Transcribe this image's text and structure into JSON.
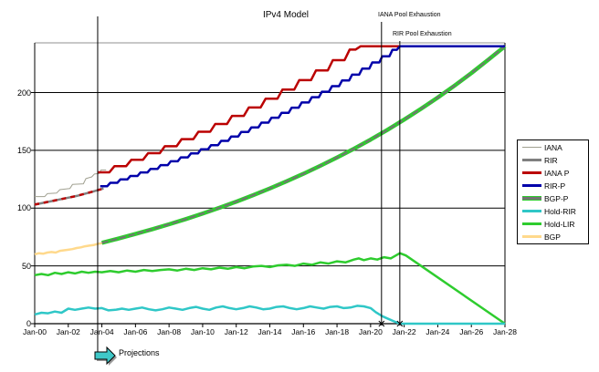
{
  "title": "IPv4 Model",
  "annotations": {
    "iana_exhaustion": {
      "label": "IANA Pool Exhaustion",
      "x_year": 20.65
    },
    "rir_exhaustion": {
      "label": "RIR Pool Exhaustion",
      "x_year": 21.74
    },
    "projections": {
      "label": "Projections",
      "x_year": 3.75,
      "arrow_color": "#3fc8c8"
    }
  },
  "legend": {
    "items": [
      {
        "label": "IANA",
        "color": "#a0a090",
        "thin": true
      },
      {
        "label": "RIR",
        "color": "#808080"
      },
      {
        "label": "IANA P",
        "color": "#bb0000"
      },
      {
        "label": "RIR-P",
        "color": "#0000aa"
      },
      {
        "label": "BGP-P",
        "color": "#737373",
        "edge": "#2ecc2e"
      },
      {
        "label": "Hold-RIR",
        "color": "#2fc7c7"
      },
      {
        "label": "Hold-LIR",
        "color": "#2ecc2e"
      },
      {
        "label": "BGP",
        "color": "#ffd98c"
      }
    ]
  },
  "chart_data": {
    "type": "line",
    "title": "IPv4 Model",
    "x_axis": {
      "range_years": [
        0,
        28
      ],
      "tick_labels": [
        "Jan-00",
        "Jan-02",
        "Jan-04",
        "Jan-06",
        "Jan-08",
        "Jan-10",
        "Jan-12",
        "Jan-14",
        "Jan-16",
        "Jan-18",
        "Jan-20",
        "Jan-22",
        "Jan-24",
        "Jan-26",
        "Jan-28"
      ],
      "tick_years": [
        0,
        2,
        4,
        6,
        8,
        10,
        12,
        14,
        16,
        18,
        20,
        22,
        24,
        26,
        28
      ]
    },
    "y_axis": {
      "range": [
        0,
        243
      ],
      "ticks": [
        0,
        50,
        100,
        150,
        200
      ],
      "grid": true
    },
    "legend_position": "right",
    "series": [
      {
        "name": "RIR",
        "color": "#808080",
        "width": 2.5,
        "style": "line",
        "points": [
          [
            0,
            103
          ],
          [
            0.5,
            104.5
          ],
          [
            1,
            106
          ],
          [
            1.5,
            107.5
          ],
          [
            2,
            109
          ],
          [
            2.5,
            110.5
          ],
          [
            3,
            112.5
          ],
          [
            3.5,
            114.5
          ],
          [
            4.1,
            117
          ]
        ]
      },
      {
        "name": "IANA P fit",
        "color": "#bb0000",
        "width": 2.5,
        "style": "line",
        "dash": "5,5",
        "points": [
          [
            0,
            103
          ],
          [
            0.5,
            104.5
          ],
          [
            1,
            106
          ],
          [
            1.5,
            107.5
          ],
          [
            2,
            109
          ],
          [
            2.5,
            110.5
          ],
          [
            3,
            112.5
          ],
          [
            3.5,
            114.5
          ],
          [
            4.1,
            117
          ]
        ]
      },
      {
        "name": "IANA",
        "color": "#a0a090",
        "width": 1,
        "style": "line",
        "points": [
          [
            0,
            110
          ],
          [
            0.6,
            110
          ],
          [
            0.75,
            112.5
          ],
          [
            1.3,
            113
          ],
          [
            1.5,
            116
          ],
          [
            2.1,
            117
          ],
          [
            2.25,
            120.5
          ],
          [
            2.9,
            121
          ],
          [
            3.05,
            125.5
          ],
          [
            3.4,
            127
          ],
          [
            3.55,
            129.5
          ],
          [
            3.85,
            130
          ],
          [
            3.95,
            133
          ],
          [
            4.25,
            133
          ]
        ]
      },
      {
        "name": "BGP",
        "color": "#ffd98c",
        "width": 2.5,
        "style": "line",
        "points": [
          [
            0,
            60
          ],
          [
            0.25,
            61
          ],
          [
            0.5,
            60.5
          ],
          [
            0.75,
            61.5
          ],
          [
            1,
            62
          ],
          [
            1.25,
            61.5
          ],
          [
            1.5,
            63
          ],
          [
            1.75,
            63.5
          ],
          [
            2,
            64
          ],
          [
            2.25,
            64.5
          ],
          [
            2.5,
            65.5
          ],
          [
            2.75,
            66
          ],
          [
            3,
            67
          ],
          [
            3.25,
            67.5
          ],
          [
            3.5,
            68
          ],
          [
            3.75,
            69
          ],
          [
            4.1,
            70
          ]
        ]
      },
      {
        "name": "BGP-P",
        "color": "#737373",
        "width": 2,
        "style": "line",
        "dash": "7,3",
        "edge": "#2ecc2e",
        "edge_width": 4.5,
        "points": [
          [
            4,
            70
          ],
          [
            5,
            73.7
          ],
          [
            6,
            77.6
          ],
          [
            7,
            81.7
          ],
          [
            8,
            86
          ],
          [
            9,
            90.5
          ],
          [
            10,
            95.3
          ],
          [
            11,
            100.3
          ],
          [
            12,
            105.6
          ],
          [
            13,
            111.2
          ],
          [
            14,
            117
          ],
          [
            15,
            123.2
          ],
          [
            16,
            129.7
          ],
          [
            17,
            136.6
          ],
          [
            18,
            143.8
          ],
          [
            19,
            151.3
          ],
          [
            20,
            159.3
          ],
          [
            21,
            167.7
          ],
          [
            22,
            176.6
          ],
          [
            23,
            185.9
          ],
          [
            24,
            195.7
          ],
          [
            25,
            206
          ],
          [
            26,
            216.8
          ],
          [
            27,
            228.3
          ],
          [
            28,
            240
          ]
        ]
      },
      {
        "name": "Hold-LIR",
        "color": "#2ecc2e",
        "width": 2.5,
        "style": "line",
        "points": [
          [
            0,
            42
          ],
          [
            0.4,
            43
          ],
          [
            0.8,
            42
          ],
          [
            1.2,
            44
          ],
          [
            1.6,
            43
          ],
          [
            2,
            44.5
          ],
          [
            2.4,
            43.5
          ],
          [
            2.8,
            45
          ],
          [
            3.2,
            44
          ],
          [
            3.6,
            45
          ],
          [
            4,
            44.5
          ],
          [
            4.5,
            45.5
          ],
          [
            5,
            44.5
          ],
          [
            5.5,
            46
          ],
          [
            6,
            45
          ],
          [
            6.5,
            46.5
          ],
          [
            7,
            45.5
          ],
          [
            7.5,
            46.5
          ],
          [
            8,
            47
          ],
          [
            8.5,
            46
          ],
          [
            9,
            47.5
          ],
          [
            9.5,
            46.5
          ],
          [
            10,
            48
          ],
          [
            10.5,
            47
          ],
          [
            11,
            48.5
          ],
          [
            11.5,
            47.5
          ],
          [
            12,
            49
          ],
          [
            12.5,
            48
          ],
          [
            13,
            49.5
          ],
          [
            13.5,
            50
          ],
          [
            14,
            49
          ],
          [
            14.5,
            50.5
          ],
          [
            15,
            51
          ],
          [
            15.5,
            50
          ],
          [
            16,
            52
          ],
          [
            16.5,
            51
          ],
          [
            17,
            53
          ],
          [
            17.5,
            52
          ],
          [
            18,
            54
          ],
          [
            18.5,
            53
          ],
          [
            19,
            55.5
          ],
          [
            19.3,
            56.5
          ],
          [
            19.6,
            55
          ],
          [
            20,
            56.5
          ],
          [
            20.4,
            55.5
          ],
          [
            20.8,
            57.5
          ],
          [
            21.2,
            56.5
          ],
          [
            21.74,
            61
          ],
          [
            22.1,
            59
          ],
          [
            28,
            0
          ]
        ]
      },
      {
        "name": "Hold-RIR",
        "color": "#2fc7c7",
        "width": 2.5,
        "style": "line",
        "points": [
          [
            0,
            8
          ],
          [
            0.4,
            9.5
          ],
          [
            0.8,
            9
          ],
          [
            1.2,
            10.5
          ],
          [
            1.6,
            9.5
          ],
          [
            2,
            13
          ],
          [
            2.4,
            12
          ],
          [
            2.8,
            13
          ],
          [
            3.2,
            14
          ],
          [
            3.6,
            13
          ],
          [
            4,
            13.5
          ],
          [
            4.4,
            11.5
          ],
          [
            4.8,
            12
          ],
          [
            5.2,
            13
          ],
          [
            5.6,
            12
          ],
          [
            6,
            13
          ],
          [
            6.4,
            14
          ],
          [
            6.8,
            12.5
          ],
          [
            7.2,
            11.5
          ],
          [
            7.6,
            12.5
          ],
          [
            8,
            14
          ],
          [
            8.4,
            13
          ],
          [
            8.8,
            12
          ],
          [
            9.2,
            13.5
          ],
          [
            9.6,
            14.5
          ],
          [
            10,
            13
          ],
          [
            10.4,
            12
          ],
          [
            10.8,
            14
          ],
          [
            11.2,
            15
          ],
          [
            11.6,
            13.5
          ],
          [
            12,
            12.5
          ],
          [
            12.4,
            13.5
          ],
          [
            12.8,
            15
          ],
          [
            13.2,
            14
          ],
          [
            13.6,
            12.5
          ],
          [
            14,
            13
          ],
          [
            14.4,
            14.5
          ],
          [
            14.8,
            15
          ],
          [
            15.2,
            13.5
          ],
          [
            15.6,
            12.5
          ],
          [
            16,
            13.5
          ],
          [
            16.4,
            15
          ],
          [
            16.8,
            14
          ],
          [
            17.2,
            13
          ],
          [
            17.6,
            14.5
          ],
          [
            18,
            15
          ],
          [
            18.4,
            13.5
          ],
          [
            18.8,
            14
          ],
          [
            19.2,
            15.5
          ],
          [
            19.6,
            15
          ],
          [
            20,
            13.5
          ],
          [
            20.3,
            10
          ],
          [
            20.7,
            6.5
          ],
          [
            21,
            4.5
          ],
          [
            21.4,
            2
          ],
          [
            21.74,
            0
          ],
          [
            28,
            0
          ]
        ]
      },
      {
        "name": "IANA P",
        "color": "#bb0000",
        "width": 2.5,
        "style": "steps",
        "riser": 0.3,
        "points": [
          [
            3.75,
            131
          ],
          [
            4.75,
            136.3
          ],
          [
            5.75,
            141.8
          ],
          [
            6.75,
            147.5
          ],
          [
            7.75,
            153.5
          ],
          [
            8.75,
            159.7
          ],
          [
            9.75,
            166.1
          ],
          [
            10.75,
            172.8
          ],
          [
            11.75,
            179.8
          ],
          [
            12.75,
            187.1
          ],
          [
            13.75,
            194.6
          ],
          [
            14.75,
            202.5
          ],
          [
            15.75,
            210.7
          ],
          [
            16.75,
            219.2
          ],
          [
            17.75,
            228
          ],
          [
            18.75,
            237.2
          ],
          [
            19.4,
            240
          ],
          [
            21.7,
            240
          ]
        ]
      },
      {
        "name": "RIR-P",
        "color": "#0000aa",
        "width": 2.5,
        "style": "steps",
        "riser": 0.18,
        "points": [
          [
            3.9,
            119
          ],
          [
            4.5,
            121.9
          ],
          [
            5.1,
            124.8
          ],
          [
            5.7,
            127.8
          ],
          [
            6.3,
            130.9
          ],
          [
            6.9,
            134
          ],
          [
            7.5,
            137.2
          ],
          [
            8.1,
            140.5
          ],
          [
            8.7,
            143.9
          ],
          [
            9.3,
            147.3
          ],
          [
            9.9,
            150.9
          ],
          [
            10.5,
            154.5
          ],
          [
            11.1,
            158.2
          ],
          [
            11.7,
            162
          ],
          [
            12.3,
            165.9
          ],
          [
            12.9,
            169.9
          ],
          [
            13.5,
            174
          ],
          [
            14.1,
            178.2
          ],
          [
            14.7,
            182.5
          ],
          [
            15.3,
            186.9
          ],
          [
            15.9,
            191.4
          ],
          [
            16.5,
            196
          ],
          [
            17.1,
            200.7
          ],
          [
            17.7,
            205.5
          ],
          [
            18.3,
            210.4
          ],
          [
            18.9,
            215.5
          ],
          [
            19.5,
            220.7
          ],
          [
            20.1,
            226
          ],
          [
            20.7,
            231.4
          ],
          [
            21.3,
            237
          ],
          [
            21.74,
            240
          ],
          [
            28,
            240
          ]
        ]
      }
    ]
  }
}
